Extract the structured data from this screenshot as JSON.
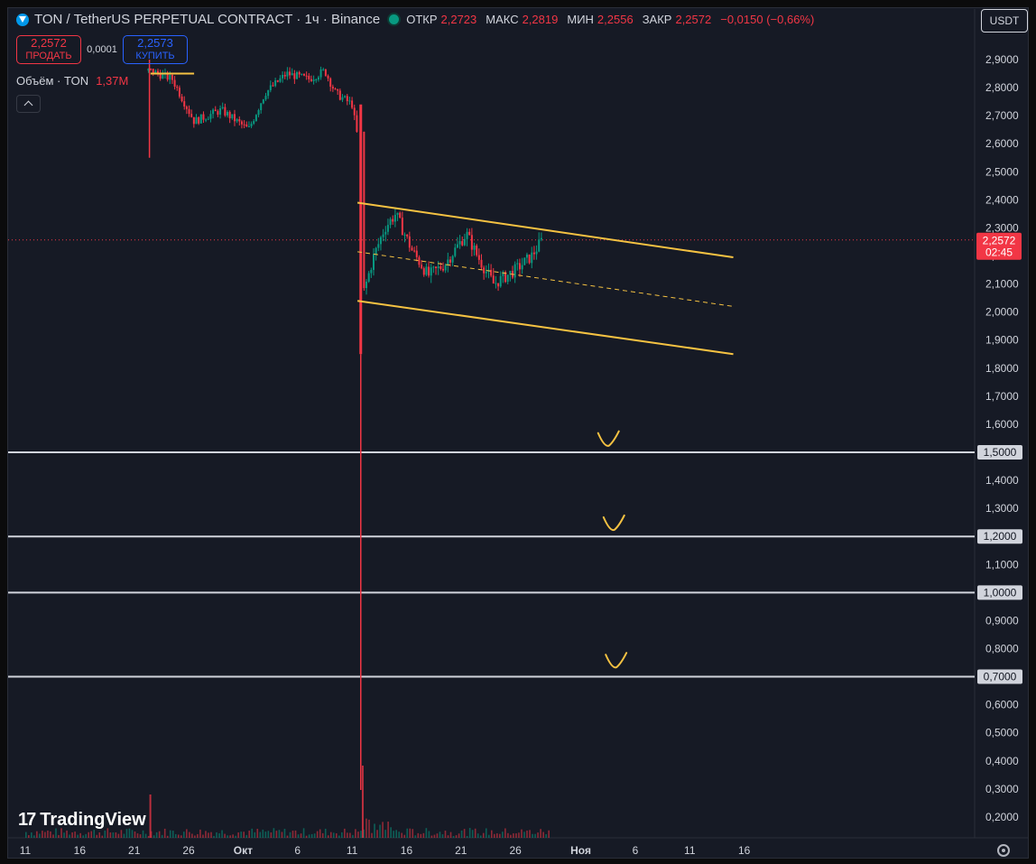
{
  "header": {
    "symbol": "TON / TetherUS PERPETUAL CONTRACT · 1ч · Binance",
    "ohlc": [
      {
        "key": "ОТКР",
        "value": "2,2723"
      },
      {
        "key": "МАКС",
        "value": "2,2819"
      },
      {
        "key": "МИН",
        "value": "2,2556"
      },
      {
        "key": "ЗАКР",
        "value": "2,2572"
      },
      {
        "key": "",
        "value": "−0,0150 (−0,66%)"
      }
    ],
    "currency": "USDT"
  },
  "trade": {
    "sell_price": "2,2572",
    "sell_label": "ПРОДАТЬ",
    "spread": "0,0001",
    "buy_price": "2,2573",
    "buy_label": "КУПИТЬ"
  },
  "volume": {
    "label": "Объём · TON",
    "value": "1,37M"
  },
  "brand": "TradingView",
  "colors": {
    "background": "#161a25",
    "up": "#089981",
    "down": "#f23645",
    "drawing": "#f5c242",
    "level_line": "#d1d4dc",
    "axis_text": "#d1d4dc"
  },
  "chart_data": {
    "type": "candlestick",
    "symbol": "TONUSDT.P",
    "interval": "1ч",
    "y_axis": {
      "range": [
        0.15,
        2.98
      ],
      "ticks": [
        "2,9000",
        "2,8000",
        "2,7000",
        "2,6000",
        "2,5000",
        "2,4000",
        "2,3000",
        "2,2000",
        "2,1000",
        "2,0000",
        "1,9000",
        "1,8000",
        "1,7000",
        "1,6000",
        "1,5000",
        "1,4000",
        "1,3000",
        "1,2000",
        "1,1000",
        "1,0000",
        "0,9000",
        "0,8000",
        "0,7000",
        "0,6000",
        "0,5000",
        "0,4000",
        "0,3000",
        "0,2000"
      ],
      "tick_values": [
        2.9,
        2.8,
        2.7,
        2.6,
        2.5,
        2.4,
        2.3,
        2.2,
        2.1,
        2.0,
        1.9,
        1.8,
        1.7,
        1.6,
        1.5,
        1.4,
        1.3,
        1.2,
        1.1,
        1.0,
        0.9,
        0.8,
        0.7,
        0.6,
        0.5,
        0.4,
        0.3,
        0.2
      ]
    },
    "x_axis": {
      "ticks": [
        "11",
        "16",
        "21",
        "26",
        "Окт",
        "6",
        "11",
        "16",
        "21",
        "26",
        "Ноя",
        "6",
        "11",
        "16"
      ],
      "tick_bold": [
        false,
        false,
        false,
        false,
        true,
        false,
        false,
        false,
        false,
        false,
        true,
        false,
        false,
        false
      ],
      "tick_day_index": [
        0,
        5,
        10,
        15,
        20,
        25,
        30,
        35,
        40,
        45,
        51,
        56,
        61,
        66
      ]
    },
    "price_path": [
      {
        "day": -1.5,
        "price": 2.9
      },
      {
        "day": 11.5,
        "price": 2.86
      },
      {
        "day": 13.5,
        "price": 2.83
      },
      {
        "day": 15.5,
        "price": 2.68
      },
      {
        "day": 18,
        "price": 2.72
      },
      {
        "day": 20.5,
        "price": 2.65
      },
      {
        "day": 22,
        "price": 2.78
      },
      {
        "day": 24,
        "price": 2.85
      },
      {
        "day": 26,
        "price": 2.83
      },
      {
        "day": 27.5,
        "price": 2.86
      },
      {
        "day": 28.5,
        "price": 2.78
      },
      {
        "day": 30,
        "price": 2.74
      },
      {
        "day": 30.6,
        "price": 2.6
      },
      {
        "day": 31,
        "price": 2.06
      },
      {
        "day": 32,
        "price": 2.2
      },
      {
        "day": 33,
        "price": 2.3
      },
      {
        "day": 34,
        "price": 2.35
      },
      {
        "day": 35.5,
        "price": 2.22
      },
      {
        "day": 37,
        "price": 2.13
      },
      {
        "day": 38.5,
        "price": 2.17
      },
      {
        "day": 40.5,
        "price": 2.28
      },
      {
        "day": 41.5,
        "price": 2.2
      },
      {
        "day": 43,
        "price": 2.1
      },
      {
        "day": 45,
        "price": 2.15
      },
      {
        "day": 46.5,
        "price": 2.2
      },
      {
        "day": 47.5,
        "price": 2.26
      }
    ],
    "crash_candle": {
      "day": 30.8,
      "high": 2.74,
      "low": 1.85
    },
    "early_wick": {
      "day": 11.4,
      "high": 2.9,
      "low": 2.55
    },
    "last_price": {
      "value": "2,2572",
      "countdown": "02:45",
      "price": 2.2572
    },
    "trend_channel": {
      "upper": {
        "from": {
          "day": 30.5,
          "price": 2.39
        },
        "to": {
          "day": 65,
          "price": 2.195
        }
      },
      "lower": {
        "from": {
          "day": 30.5,
          "price": 2.04
        },
        "to": {
          "day": 65,
          "price": 1.85
        }
      },
      "middle": {
        "from": {
          "day": 30.5,
          "price": 2.215
        },
        "to": {
          "day": 65,
          "price": 2.02
        },
        "dashed": true
      }
    },
    "top_marker": {
      "from_day": 11.5,
      "to_day": 15.5,
      "price": 2.85
    },
    "horizontal_levels": [
      {
        "price": 1.5,
        "label": "1,5000"
      },
      {
        "price": 1.2,
        "label": "1,2000"
      },
      {
        "price": 1.0,
        "label": "1,0000"
      },
      {
        "price": 0.7,
        "label": "0,7000"
      }
    ],
    "check_marks": [
      {
        "day": 53.5,
        "price": 1.53
      },
      {
        "day": 54,
        "price": 1.23
      },
      {
        "day": 54.2,
        "price": 0.74
      }
    ],
    "volume_spikes": [
      {
        "day": 11.4,
        "rel": 0.6
      },
      {
        "day": 30.9,
        "rel": 1.0
      }
    ],
    "grid": false,
    "legend": "top-left"
  }
}
